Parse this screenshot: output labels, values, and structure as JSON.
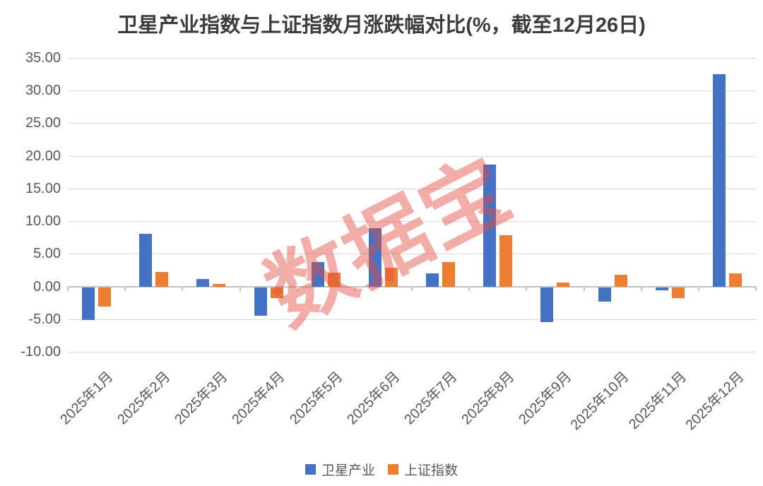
{
  "watermark": {
    "text": "数据宝",
    "color": "#E64B41"
  },
  "chart_data": {
    "type": "bar",
    "title": "卫星产业指数与上证指数月涨跌幅对比(%，截至12月26日)",
    "unit": "%",
    "categories": [
      "2025年1月",
      "2025年2月",
      "2025年3月",
      "2025年4月",
      "2025年5月",
      "2025年6月",
      "2025年7月",
      "2025年8月",
      "2025年9月",
      "2025年10月",
      "2025年11月",
      "2025年12月"
    ],
    "series": [
      {
        "name": "卫星产业",
        "color": "#4472C4",
        "values": [
          -5.0,
          8.1,
          1.1,
          -4.4,
          3.7,
          8.9,
          2.0,
          18.7,
          -5.3,
          -2.2,
          -0.5,
          32.5
        ]
      },
      {
        "name": "上证指数",
        "color": "#ED7D31",
        "values": [
          -3.0,
          2.2,
          0.4,
          -1.7,
          2.1,
          2.9,
          3.7,
          7.9,
          0.6,
          1.8,
          -1.7,
          2.0
        ]
      }
    ],
    "ylim": [
      -10,
      35
    ],
    "y_tick_step": 5,
    "y_tick_labels": [
      "35.00",
      "30.00",
      "25.00",
      "20.00",
      "15.00",
      "10.00",
      "5.00",
      "0.00",
      "-5.00",
      "-10.00"
    ],
    "grid": true,
    "legend_position": "bottom",
    "x_label_rotation_deg": 45,
    "axis_text_color": "#595959",
    "gridline_color": "#D9D9D9"
  }
}
